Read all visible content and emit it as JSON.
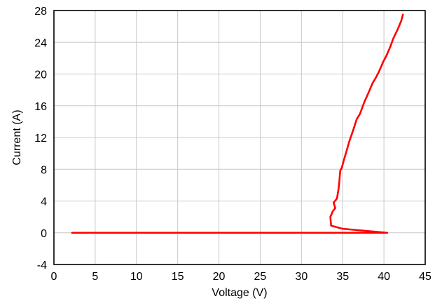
{
  "chart_data": {
    "type": "line",
    "title": "",
    "xlabel": "Voltage (V)",
    "ylabel": "Current (A)",
    "xlim": [
      0,
      45
    ],
    "ylim": [
      -4,
      28
    ],
    "xticks": [
      0,
      5,
      10,
      15,
      20,
      25,
      30,
      35,
      40,
      45
    ],
    "yticks": [
      -4,
      0,
      4,
      8,
      12,
      16,
      20,
      24,
      28
    ],
    "grid": true,
    "legend": "none",
    "series_color": "#ff0000",
    "series": [
      {
        "x": [
          2.2,
          34.5,
          40.4,
          35.0,
          33.6,
          33.5,
          33.8,
          34.1,
          33.9,
          34.3,
          34.5,
          34.6,
          34.7,
          34.9,
          35.1,
          35.5,
          35.8,
          36.3,
          36.7,
          37.1,
          37.6,
          38.2,
          38.6,
          39.0,
          39.4,
          39.9,
          40.3,
          40.8,
          41.1,
          41.7,
          42.1,
          42.3
        ],
        "y": [
          0.0,
          0.0,
          0.0,
          0.5,
          0.9,
          2.0,
          2.7,
          3.1,
          3.8,
          4.3,
          5.5,
          6.5,
          7.8,
          8.2,
          9.0,
          10.4,
          11.5,
          13.0,
          14.3,
          15.0,
          16.4,
          17.8,
          18.8,
          19.5,
          20.3,
          21.5,
          22.3,
          23.5,
          24.4,
          25.7,
          26.7,
          27.5
        ]
      }
    ]
  }
}
